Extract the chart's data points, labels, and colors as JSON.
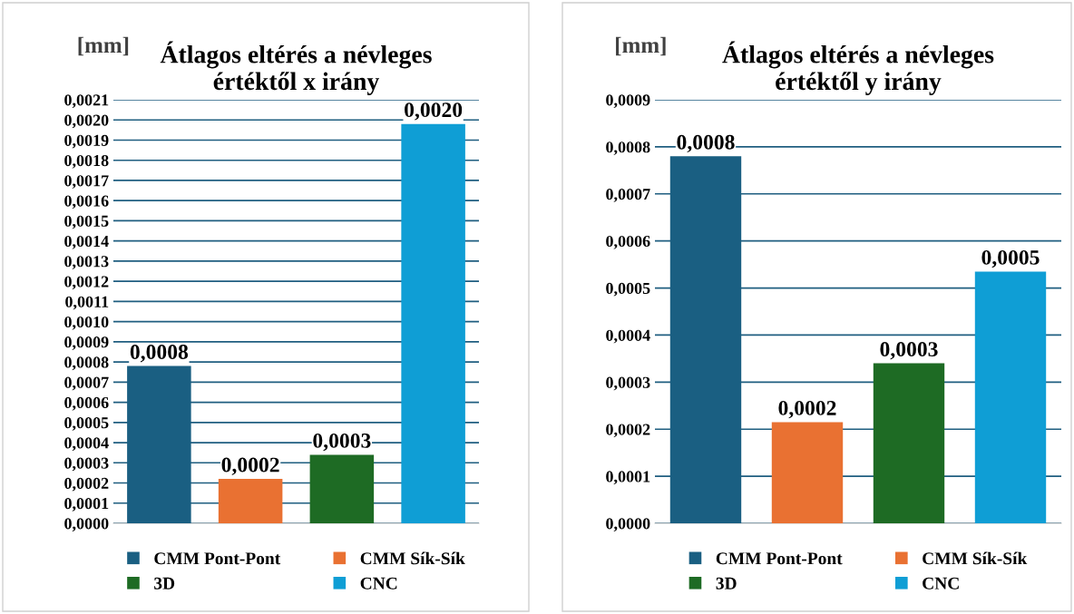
{
  "chart_data": [
    {
      "type": "bar",
      "title": "Átlagos eltérés a névleges\nértéktől x irány",
      "ylabel": "[mm]",
      "categories": [
        null
      ],
      "series": [
        {
          "name": "CMM Pont-Pont",
          "color": "#1a5f82",
          "values": [
            0.00078
          ],
          "value_labels": [
            "0,0008"
          ]
        },
        {
          "name": "CMM Sík-Sík",
          "color": "#e97132",
          "values": [
            0.00022
          ],
          "value_labels": [
            "0,0002"
          ]
        },
        {
          "name": "3D",
          "color": "#1e6b24",
          "values": [
            0.00034
          ],
          "value_labels": [
            "0,0003"
          ]
        },
        {
          "name": "CNC",
          "color": "#0f9ed5",
          "values": [
            0.00198
          ],
          "value_labels": [
            "0,0020"
          ]
        }
      ],
      "ylim": [
        0,
        0.0021
      ],
      "yticks": [
        {
          "value": 0,
          "label": "0,0000"
        },
        {
          "value": 0.0001,
          "label": "0,0001"
        },
        {
          "value": 0.0002,
          "label": "0,0002"
        },
        {
          "value": 0.0003,
          "label": "0,0003"
        },
        {
          "value": 0.0004,
          "label": "0,0004"
        },
        {
          "value": 0.0005,
          "label": "0,0005"
        },
        {
          "value": 0.0006,
          "label": "0,0006"
        },
        {
          "value": 0.0007,
          "label": "0,0007"
        },
        {
          "value": 0.0008,
          "label": "0,0008"
        },
        {
          "value": 0.0009,
          "label": "0,0009"
        },
        {
          "value": 0.001,
          "label": "0,0010"
        },
        {
          "value": 0.0011,
          "label": "0,0011"
        },
        {
          "value": 0.0012,
          "label": "0,0012"
        },
        {
          "value": 0.0013,
          "label": "0,0013"
        },
        {
          "value": 0.0014,
          "label": "0,0014"
        },
        {
          "value": 0.0015,
          "label": "0,0015"
        },
        {
          "value": 0.0016,
          "label": "0,0016"
        },
        {
          "value": 0.0017,
          "label": "0,0017"
        },
        {
          "value": 0.0018,
          "label": "0,0018"
        },
        {
          "value": 0.0019,
          "label": "0,0019"
        },
        {
          "value": 0.002,
          "label": "0,0020"
        },
        {
          "value": 0.0021,
          "label": "0,0021"
        }
      ],
      "grid": "y",
      "legend": "bottom"
    },
    {
      "type": "bar",
      "title": "Átlagos eltérés a névleges\nértéktől y irány",
      "ylabel": "[mm]",
      "categories": [
        null
      ],
      "series": [
        {
          "name": "CMM Pont-Pont",
          "color": "#1a5f82",
          "values": [
            0.00078
          ],
          "value_labels": [
            "0,0008"
          ]
        },
        {
          "name": "CMM Sík-Sík",
          "color": "#e97132",
          "values": [
            0.000215
          ],
          "value_labels": [
            "0,0002"
          ]
        },
        {
          "name": "3D",
          "color": "#1e6b24",
          "values": [
            0.00034
          ],
          "value_labels": [
            "0,0003"
          ]
        },
        {
          "name": "CNC",
          "color": "#0f9ed5",
          "values": [
            0.000535
          ],
          "value_labels": [
            "0,0005"
          ]
        }
      ],
      "ylim": [
        0,
        0.0009
      ],
      "yticks": [
        {
          "value": 0,
          "label": "0,0000"
        },
        {
          "value": 0.0001,
          "label": "0,0001"
        },
        {
          "value": 0.0002,
          "label": "0,0002"
        },
        {
          "value": 0.0003,
          "label": "0,0003"
        },
        {
          "value": 0.0004,
          "label": "0,0004"
        },
        {
          "value": 0.0005,
          "label": "0,0005"
        },
        {
          "value": 0.0006,
          "label": "0,0006"
        },
        {
          "value": 0.0007,
          "label": "0,0007"
        },
        {
          "value": 0.0008,
          "label": "0,0008"
        },
        {
          "value": 0.0009,
          "label": "0,0009"
        }
      ],
      "grid": "y",
      "legend": "bottom"
    }
  ]
}
